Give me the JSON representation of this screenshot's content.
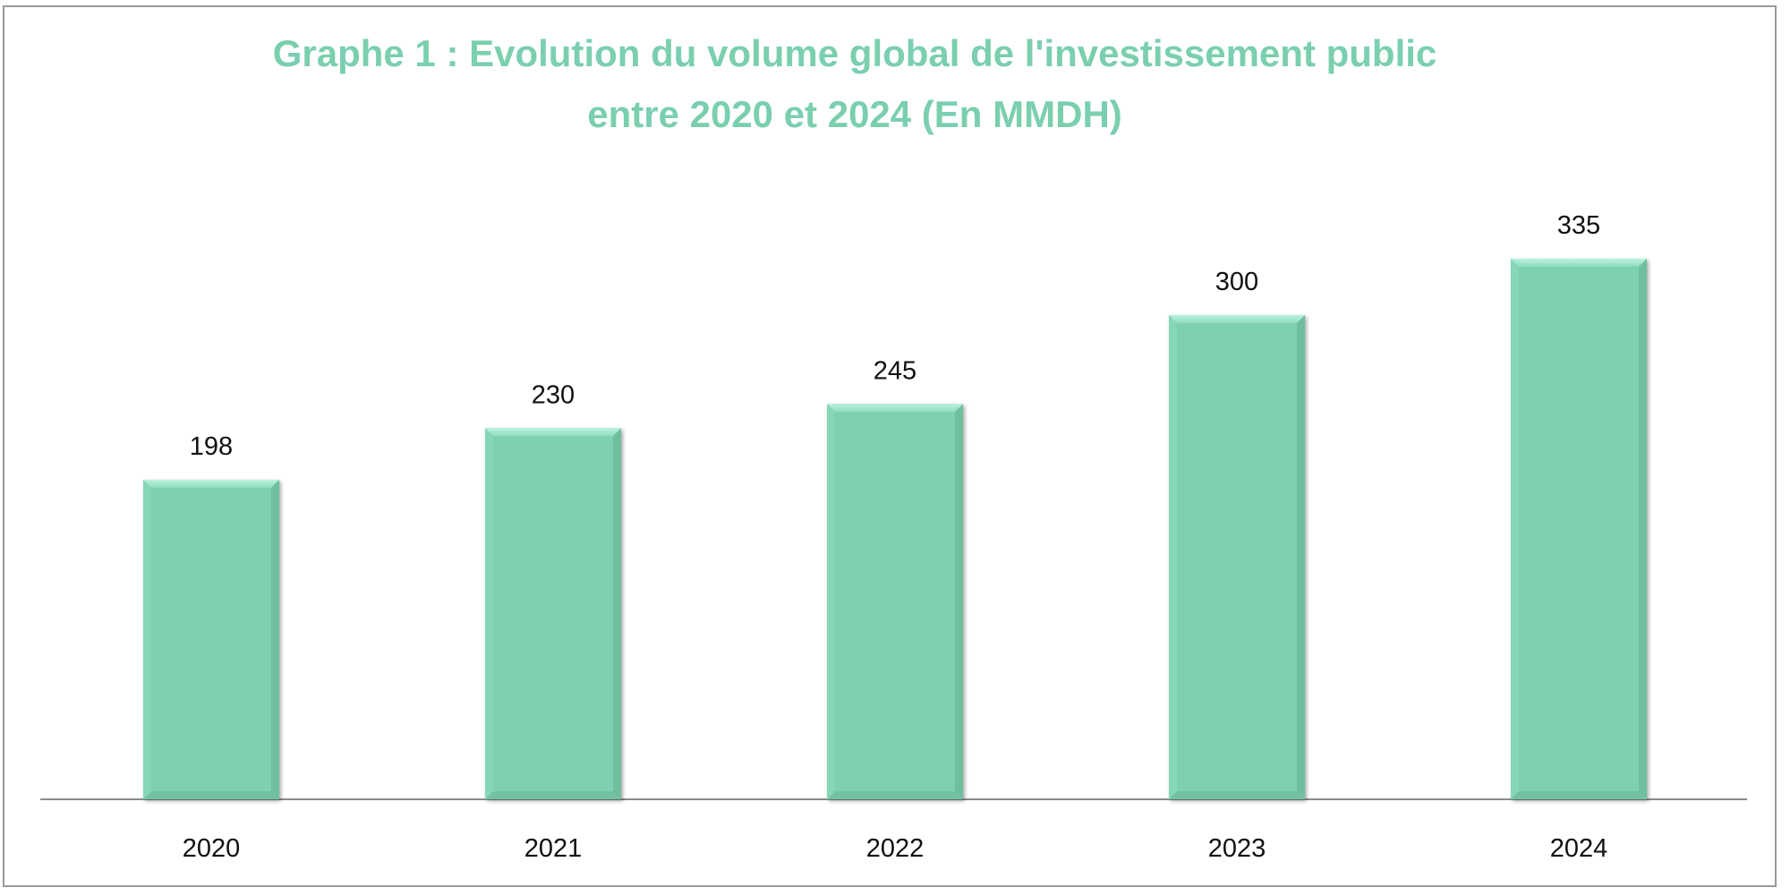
{
  "chart_data": {
    "type": "bar",
    "title": "Graphe 1  : Evolution du volume global de l'investissement public",
    "subtitle": "entre 2020 et 2024 (En MMDH)",
    "categories": [
      "2020",
      "2021",
      "2022",
      "2023",
      "2024"
    ],
    "values": [
      198,
      230,
      245,
      300,
      335
    ],
    "data_labels": [
      "198",
      "230",
      "245",
      "300",
      "335"
    ],
    "xlabel": "",
    "ylabel": "",
    "ylim": [
      0,
      380
    ],
    "grid": false,
    "legend": "none",
    "colors": {
      "bar": "#7dd1b0",
      "title": "#7acfae"
    }
  }
}
